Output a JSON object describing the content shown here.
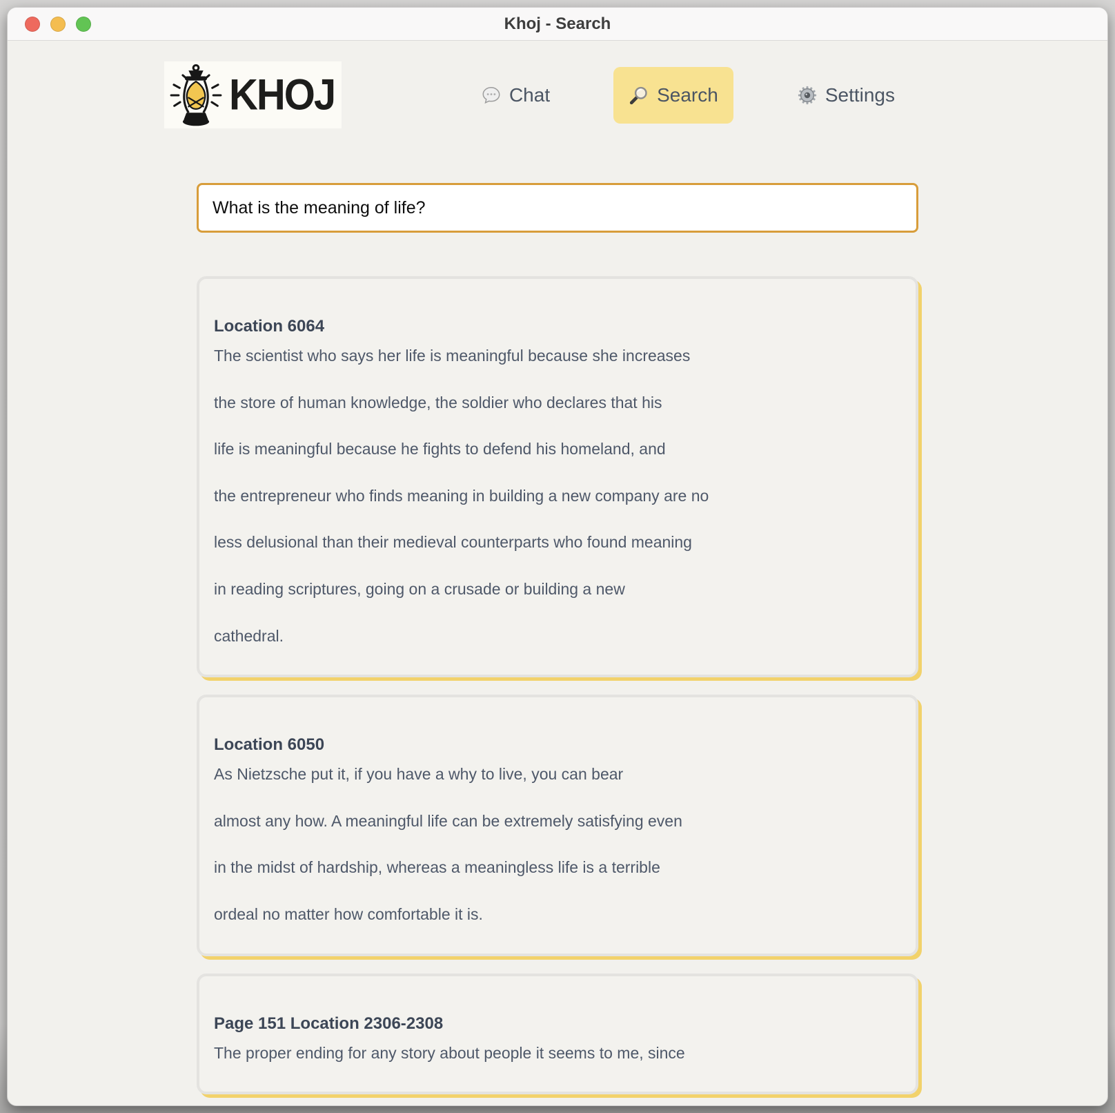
{
  "window": {
    "title": "Khoj - Search",
    "traffic_lights": [
      "close",
      "minimize",
      "zoom"
    ]
  },
  "header": {
    "logo_text": "KHOJ",
    "logo_icon": "lantern-icon"
  },
  "nav": {
    "chat": {
      "label": "Chat",
      "icon": "speech-balloon-icon"
    },
    "search": {
      "label": "Search",
      "icon": "magnifying-glass-icon",
      "active": true
    },
    "settings": {
      "label": "Settings",
      "icon": "gear-icon"
    }
  },
  "search": {
    "value": "What is the meaning of life?"
  },
  "results": [
    {
      "heading": "Location 6064",
      "lines": [
        "The scientist who says her life is meaningful because she increases",
        "the store of human knowledge, the soldier who declares that his",
        "life is meaningful because he fights to defend his homeland, and",
        "the entrepreneur who finds meaning in building a new company are no",
        "less delusional than their medieval counterparts who found meaning",
        "in reading scriptures, going on a crusade or building a new",
        "cathedral."
      ]
    },
    {
      "heading": "Location 6050",
      "lines": [
        "As Nietzsche put it, if you have a why to live, you can bear",
        "almost any how. A meaningful life can be extremely satisfying even",
        "in the midst of hardship, whereas a meaningless life is a terrible",
        "ordeal no matter how comfortable it is."
      ]
    },
    {
      "heading": "Page 151 Location 2306-2308",
      "lines": [
        "The proper ending for any story about people it seems to me, since"
      ]
    }
  ],
  "colors": {
    "nav_active_bg": "#f8e291",
    "input_border": "#d89d3b",
    "card_shadow": "#f2d26b",
    "card_border": "#e4e3e0",
    "body_text": "#4e5869",
    "heading_text": "#3c4656",
    "traffic_red": "#ee6a5e",
    "traffic_yellow": "#f4bd50",
    "traffic_green": "#62c454",
    "lantern_glow": "#f2c651"
  }
}
